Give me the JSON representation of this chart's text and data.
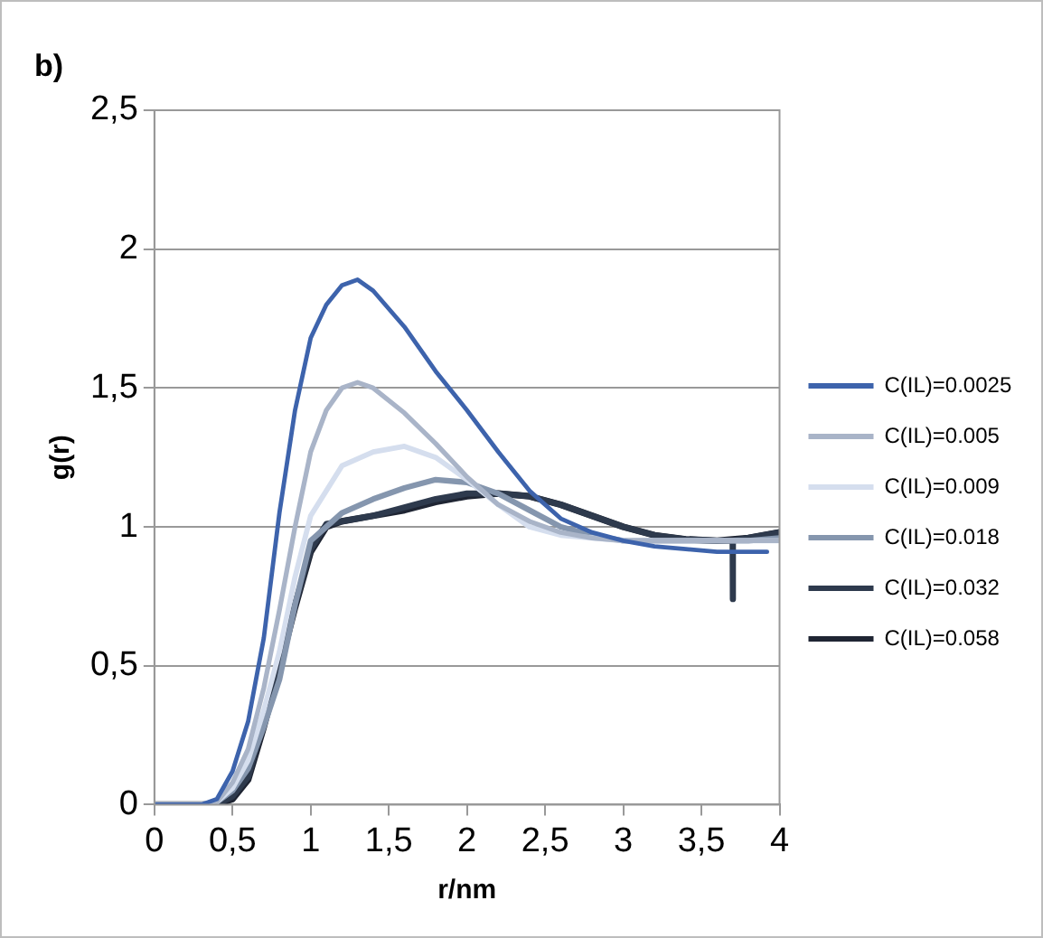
{
  "chart_data": {
    "type": "line",
    "xlabel": "r/nm",
    "ylabel": "g(r)",
    "annotations": [
      "b)"
    ],
    "xlim": [
      0,
      4
    ],
    "xticks": [
      0,
      {
        "value": 0.5,
        "label": "0,5"
      },
      1,
      {
        "value": 1.5,
        "label": "1,5"
      },
      2,
      {
        "value": 2.5,
        "label": "2,5"
      },
      3,
      {
        "value": 3.5,
        "label": "3,5"
      },
      4
    ],
    "ylim": [
      0,
      2.5
    ],
    "yticks": [
      0,
      {
        "value": 0.5,
        "label": "0,5"
      },
      1,
      {
        "value": 1.5,
        "label": "1,5"
      },
      2,
      {
        "value": 2.5,
        "label": "2,5"
      }
    ],
    "grid": "y",
    "legend": "right",
    "marker": "none",
    "line_style": "solid",
    "series": [
      {
        "name": "C(IL)=0.0025",
        "color": "#3d63ac",
        "x": [
          0,
          0.3,
          0.4,
          0.5,
          0.6,
          0.7,
          0.8,
          0.9,
          1.0,
          1.1,
          1.2,
          1.3,
          1.4,
          1.6,
          1.8,
          2.0,
          2.2,
          2.4,
          2.6,
          2.8,
          3.0,
          3.2,
          3.4,
          3.6,
          3.8,
          3.92
        ],
        "values": [
          0,
          0,
          0.02,
          0.12,
          0.3,
          0.6,
          1.05,
          1.42,
          1.68,
          1.8,
          1.87,
          1.89,
          1.85,
          1.72,
          1.56,
          1.42,
          1.27,
          1.13,
          1.03,
          0.98,
          0.95,
          0.93,
          0.92,
          0.91,
          0.91,
          0.91
        ]
      },
      {
        "name": "C(IL)=0.005",
        "color": "#a9b4c8",
        "x": [
          0,
          0.3,
          0.4,
          0.5,
          0.6,
          0.7,
          0.8,
          0.9,
          1.0,
          1.1,
          1.2,
          1.3,
          1.4,
          1.6,
          1.8,
          2.0,
          2.2,
          2.4,
          2.6,
          2.8,
          3.0,
          3.4,
          3.8,
          4.0
        ],
        "values": [
          0,
          0,
          0.01,
          0.08,
          0.2,
          0.42,
          0.7,
          1.0,
          1.27,
          1.42,
          1.5,
          1.52,
          1.5,
          1.41,
          1.3,
          1.18,
          1.08,
          1.02,
          0.98,
          0.96,
          0.95,
          0.95,
          0.95,
          0.95
        ]
      },
      {
        "name": "C(IL)=0.009",
        "color": "#d5deee",
        "x": [
          0,
          0.3,
          0.4,
          0.5,
          0.6,
          0.7,
          0.8,
          0.9,
          1.0,
          1.2,
          1.4,
          1.6,
          1.8,
          2.0,
          2.2,
          2.4,
          2.6,
          3.0,
          3.4,
          3.8,
          4.0
        ],
        "values": [
          0,
          0,
          0.01,
          0.06,
          0.16,
          0.34,
          0.55,
          0.82,
          1.04,
          1.22,
          1.27,
          1.29,
          1.25,
          1.17,
          1.08,
          1.0,
          0.97,
          0.95,
          0.95,
          0.95,
          0.95
        ]
      },
      {
        "name": "C(IL)=0.018",
        "color": "#8596ae",
        "x": [
          0,
          0.3,
          0.4,
          0.5,
          0.6,
          0.7,
          0.8,
          0.9,
          1.0,
          1.2,
          1.4,
          1.6,
          1.8,
          2.0,
          2.2,
          2.4,
          2.6,
          2.8,
          3.0,
          3.4,
          3.8,
          4.0
        ],
        "values": [
          0,
          0,
          0.01,
          0.05,
          0.13,
          0.28,
          0.45,
          0.72,
          0.95,
          1.05,
          1.1,
          1.14,
          1.17,
          1.16,
          1.12,
          1.06,
          1.0,
          0.97,
          0.95,
          0.95,
          0.95,
          0.96
        ]
      },
      {
        "name": "C(IL)=0.032",
        "color": "#2e3a4d",
        "x": [
          0,
          0.3,
          0.4,
          0.5,
          0.6,
          0.7,
          0.8,
          0.9,
          1.0,
          1.1,
          1.2,
          1.4,
          1.6,
          1.8,
          2.0,
          2.2,
          2.4,
          2.6,
          2.8,
          3.0,
          3.2,
          3.4,
          3.6,
          3.7,
          3.701,
          3.702,
          3.8,
          4.0
        ],
        "values": [
          0,
          0,
          0,
          0.03,
          0.1,
          0.3,
          0.5,
          0.72,
          0.92,
          1.01,
          1.02,
          1.04,
          1.07,
          1.1,
          1.12,
          1.12,
          1.11,
          1.08,
          1.04,
          1.0,
          0.97,
          0.955,
          0.95,
          0.95,
          0.74,
          0.95,
          0.96,
          0.98
        ]
      },
      {
        "name": "C(IL)=0.058",
        "color": "#1f2533",
        "x": [
          0,
          0.3,
          0.4,
          0.5,
          0.6,
          0.7,
          0.8,
          0.9,
          1.0,
          1.1,
          1.2,
          1.4,
          1.6,
          1.8,
          2.0,
          2.2,
          2.4,
          2.6,
          2.8,
          3.0,
          3.2,
          3.4,
          3.6,
          3.8,
          4.0
        ],
        "values": [
          0,
          0,
          0,
          0.02,
          0.09,
          0.28,
          0.49,
          0.71,
          0.91,
          1.0,
          1.02,
          1.04,
          1.06,
          1.09,
          1.11,
          1.12,
          1.11,
          1.08,
          1.04,
          1.0,
          0.97,
          0.955,
          0.95,
          0.96,
          0.98
        ]
      }
    ]
  }
}
